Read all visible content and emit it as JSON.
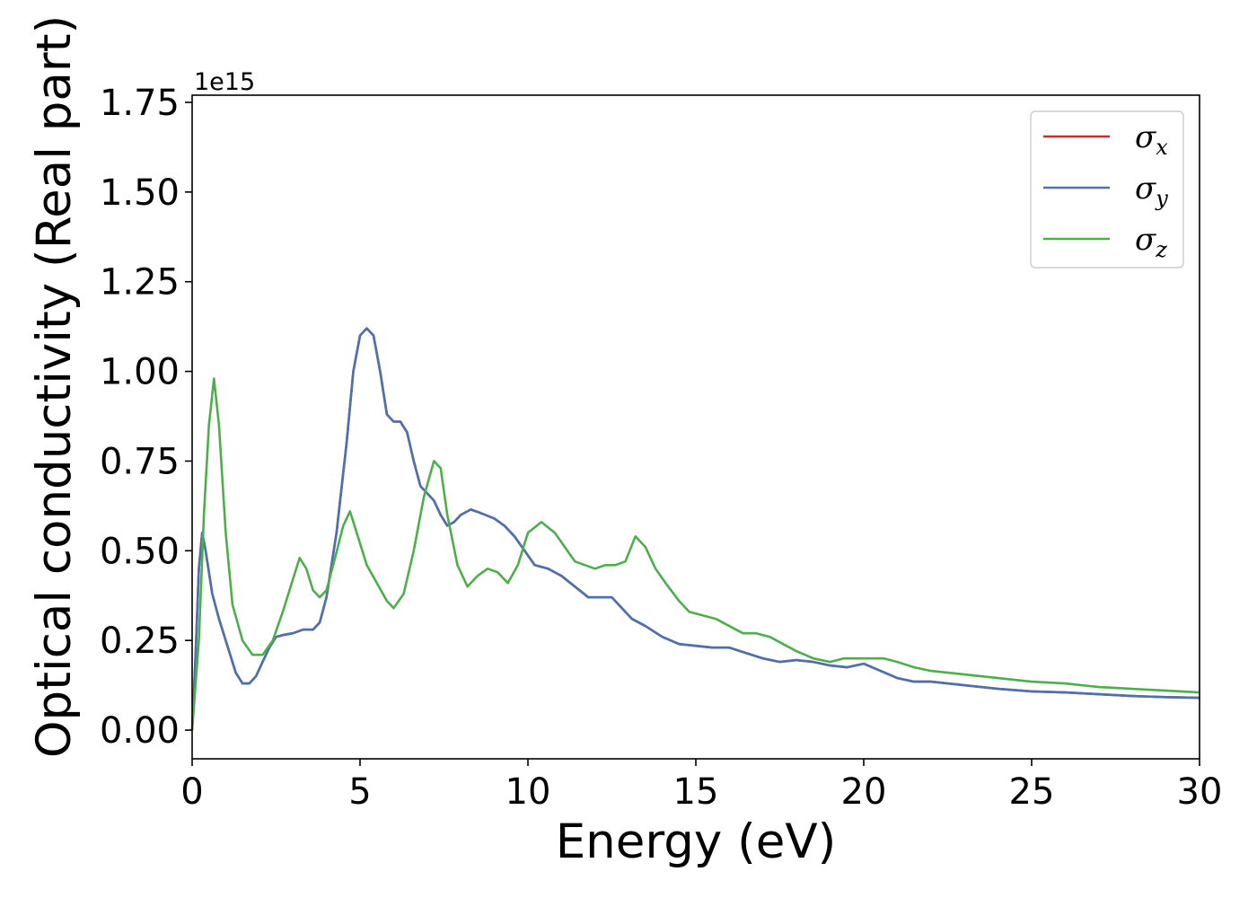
{
  "chart_data": {
    "type": "line",
    "xlabel": "Energy (eV)",
    "ylabel": "Optical conductivity (Real part)",
    "y_offset_label": "1e15",
    "xlim": [
      0,
      30
    ],
    "ylim": [
      -0.08,
      1.77
    ],
    "x_ticks": [
      0,
      5,
      10,
      15,
      20,
      25,
      30
    ],
    "x_tick_labels": [
      "0",
      "5",
      "10",
      "15",
      "20",
      "25",
      "30"
    ],
    "y_ticks": [
      0.0,
      0.25,
      0.5,
      0.75,
      1.0,
      1.25,
      1.5,
      1.75
    ],
    "y_tick_labels": [
      "0.00",
      "0.25",
      "0.50",
      "0.75",
      "1.00",
      "1.25",
      "1.50",
      "1.75"
    ],
    "grid": false,
    "legend_position": "top-right",
    "series": [
      {
        "name": "σ",
        "subscript": "x",
        "color": "#d62728",
        "x": [
          0,
          0.1,
          0.2,
          0.3,
          0.4,
          0.6,
          0.8,
          1.0,
          1.3,
          1.5,
          1.7,
          1.9,
          2.1,
          2.3,
          2.5,
          2.7,
          3.0,
          3.3,
          3.6,
          3.8,
          4.0,
          4.3,
          4.6,
          4.8,
          5.0,
          5.2,
          5.4,
          5.6,
          5.8,
          6.0,
          6.2,
          6.4,
          6.6,
          6.8,
          7.0,
          7.2,
          7.4,
          7.6,
          7.8,
          8.0,
          8.3,
          8.6,
          9.0,
          9.3,
          9.6,
          9.9,
          10.2,
          10.6,
          11.0,
          11.4,
          11.8,
          12.2,
          12.5,
          12.8,
          13.1,
          13.5,
          14.0,
          14.5,
          15.0,
          15.5,
          16.0,
          16.5,
          17.0,
          17.5,
          18.0,
          18.5,
          19.0,
          19.5,
          20.0,
          20.5,
          21.0,
          21.5,
          22.0,
          22.5,
          23.0,
          24.0,
          25.0,
          26.0,
          27.0,
          28.0,
          29.0,
          30.0
        ],
        "values": [
          0.0,
          0.2,
          0.45,
          0.55,
          0.5,
          0.38,
          0.31,
          0.25,
          0.16,
          0.13,
          0.13,
          0.15,
          0.19,
          0.23,
          0.26,
          0.265,
          0.27,
          0.28,
          0.28,
          0.3,
          0.37,
          0.55,
          0.8,
          1.0,
          1.1,
          1.12,
          1.1,
          1.0,
          0.88,
          0.86,
          0.86,
          0.83,
          0.75,
          0.68,
          0.66,
          0.64,
          0.6,
          0.57,
          0.58,
          0.6,
          0.615,
          0.605,
          0.59,
          0.57,
          0.54,
          0.5,
          0.46,
          0.45,
          0.43,
          0.4,
          0.37,
          0.37,
          0.37,
          0.34,
          0.31,
          0.29,
          0.26,
          0.24,
          0.235,
          0.23,
          0.23,
          0.215,
          0.2,
          0.19,
          0.195,
          0.19,
          0.18,
          0.175,
          0.185,
          0.165,
          0.145,
          0.135,
          0.135,
          0.13,
          0.125,
          0.115,
          0.108,
          0.105,
          0.1,
          0.095,
          0.092,
          0.09
        ]
      },
      {
        "name": "σ",
        "subscript": "y",
        "color": "#4a72b0",
        "x": [
          0,
          0.1,
          0.2,
          0.3,
          0.4,
          0.6,
          0.8,
          1.0,
          1.3,
          1.5,
          1.7,
          1.9,
          2.1,
          2.3,
          2.5,
          2.7,
          3.0,
          3.3,
          3.6,
          3.8,
          4.0,
          4.3,
          4.6,
          4.8,
          5.0,
          5.2,
          5.4,
          5.6,
          5.8,
          6.0,
          6.2,
          6.4,
          6.6,
          6.8,
          7.0,
          7.2,
          7.4,
          7.6,
          7.8,
          8.0,
          8.3,
          8.6,
          9.0,
          9.3,
          9.6,
          9.9,
          10.2,
          10.6,
          11.0,
          11.4,
          11.8,
          12.2,
          12.5,
          12.8,
          13.1,
          13.5,
          14.0,
          14.5,
          15.0,
          15.5,
          16.0,
          16.5,
          17.0,
          17.5,
          18.0,
          18.5,
          19.0,
          19.5,
          20.0,
          20.5,
          21.0,
          21.5,
          22.0,
          22.5,
          23.0,
          24.0,
          25.0,
          26.0,
          27.0,
          28.0,
          29.0,
          30.0
        ],
        "values": [
          0.0,
          0.2,
          0.45,
          0.55,
          0.5,
          0.38,
          0.31,
          0.25,
          0.16,
          0.13,
          0.13,
          0.15,
          0.19,
          0.23,
          0.26,
          0.265,
          0.27,
          0.28,
          0.28,
          0.3,
          0.37,
          0.55,
          0.8,
          1.0,
          1.1,
          1.12,
          1.1,
          1.0,
          0.88,
          0.86,
          0.86,
          0.83,
          0.75,
          0.68,
          0.66,
          0.64,
          0.6,
          0.57,
          0.58,
          0.6,
          0.615,
          0.605,
          0.59,
          0.57,
          0.54,
          0.5,
          0.46,
          0.45,
          0.43,
          0.4,
          0.37,
          0.37,
          0.37,
          0.34,
          0.31,
          0.29,
          0.26,
          0.24,
          0.235,
          0.23,
          0.23,
          0.215,
          0.2,
          0.19,
          0.195,
          0.19,
          0.18,
          0.175,
          0.185,
          0.165,
          0.145,
          0.135,
          0.135,
          0.13,
          0.125,
          0.115,
          0.108,
          0.105,
          0.1,
          0.095,
          0.092,
          0.09
        ]
      },
      {
        "name": "σ",
        "subscript": "z",
        "color": "#4daf4a",
        "x": [
          0,
          0.2,
          0.35,
          0.5,
          0.65,
          0.8,
          1.0,
          1.2,
          1.5,
          1.8,
          2.1,
          2.4,
          2.7,
          3.0,
          3.2,
          3.4,
          3.6,
          3.8,
          4.0,
          4.2,
          4.5,
          4.7,
          4.9,
          5.2,
          5.5,
          5.8,
          6.0,
          6.3,
          6.6,
          6.9,
          7.2,
          7.4,
          7.6,
          7.9,
          8.2,
          8.5,
          8.8,
          9.1,
          9.4,
          9.7,
          10.0,
          10.4,
          10.8,
          11.1,
          11.4,
          11.7,
          12.0,
          12.3,
          12.6,
          12.9,
          13.2,
          13.5,
          13.8,
          14.1,
          14.5,
          14.8,
          15.2,
          15.6,
          16.0,
          16.4,
          16.8,
          17.2,
          17.6,
          18.0,
          18.5,
          19.0,
          19.4,
          19.8,
          20.2,
          20.6,
          21.0,
          21.5,
          22.0,
          22.5,
          23.0,
          24.0,
          25.0,
          26.0,
          27.0,
          28.0,
          29.0,
          30.0
        ],
        "values": [
          0.0,
          0.25,
          0.6,
          0.85,
          0.98,
          0.85,
          0.55,
          0.35,
          0.25,
          0.21,
          0.21,
          0.25,
          0.33,
          0.42,
          0.48,
          0.45,
          0.39,
          0.37,
          0.39,
          0.46,
          0.57,
          0.61,
          0.55,
          0.46,
          0.41,
          0.36,
          0.34,
          0.38,
          0.5,
          0.65,
          0.75,
          0.73,
          0.6,
          0.46,
          0.4,
          0.43,
          0.45,
          0.44,
          0.41,
          0.46,
          0.55,
          0.58,
          0.55,
          0.51,
          0.47,
          0.46,
          0.45,
          0.46,
          0.46,
          0.47,
          0.54,
          0.51,
          0.45,
          0.41,
          0.36,
          0.33,
          0.32,
          0.31,
          0.29,
          0.27,
          0.27,
          0.26,
          0.24,
          0.22,
          0.2,
          0.19,
          0.2,
          0.2,
          0.2,
          0.2,
          0.19,
          0.175,
          0.165,
          0.16,
          0.155,
          0.145,
          0.135,
          0.13,
          0.12,
          0.115,
          0.11,
          0.105
        ]
      }
    ]
  }
}
